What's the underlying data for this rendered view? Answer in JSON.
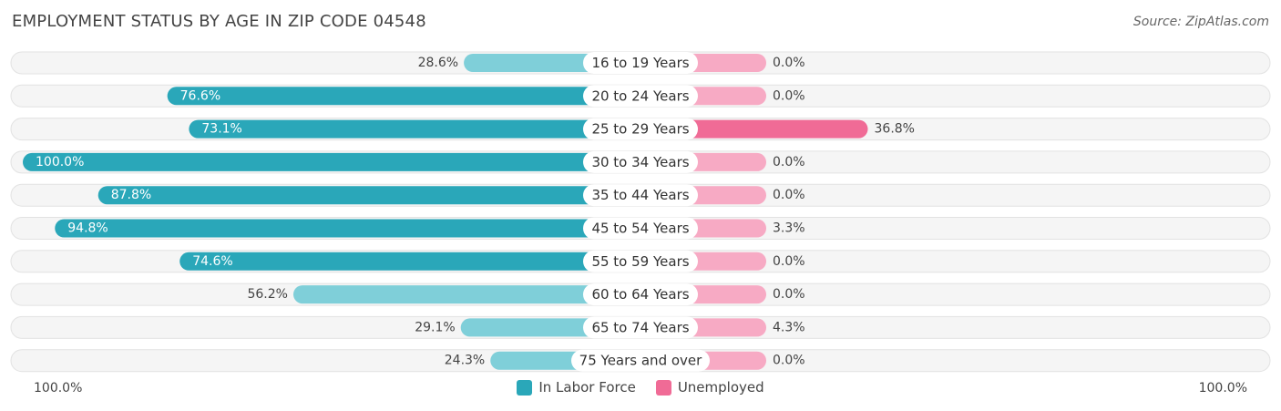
{
  "header": {
    "title": "EMPLOYMENT STATUS BY AGE IN ZIP CODE 04548",
    "source": "Source: ZipAtlas.com"
  },
  "axis": {
    "left_label": "100.0%",
    "right_label": "100.0%"
  },
  "legend": {
    "labor_force": "In Labor Force",
    "unemployed": "Unemployed"
  },
  "colors": {
    "labor_dark": "#2aa7b9",
    "labor_light": "#7fcfd9",
    "unemployed_dark": "#f06b96",
    "unemployed_light": "#f7aac4",
    "track": "#f1f1f1"
  },
  "chart_data": {
    "type": "bar",
    "orientation": "horizontal-diverging",
    "title": "EMPLOYMENT STATUS BY AGE IN ZIP CODE 04548",
    "categories": [
      "16 to 19 Years",
      "20 to 24 Years",
      "25 to 29 Years",
      "30 to 34 Years",
      "35 to 44 Years",
      "45 to 54 Years",
      "55 to 59 Years",
      "60 to 64 Years",
      "65 to 74 Years",
      "75 Years and over"
    ],
    "series": [
      {
        "name": "In Labor Force",
        "values": [
          28.6,
          76.6,
          73.1,
          100.0,
          87.8,
          94.8,
          74.6,
          56.2,
          29.1,
          24.3
        ],
        "labels": [
          "28.6%",
          "76.6%",
          "73.1%",
          "100.0%",
          "87.8%",
          "94.8%",
          "74.6%",
          "56.2%",
          "29.1%",
          "24.3%"
        ]
      },
      {
        "name": "Unemployed",
        "values": [
          0.0,
          0.0,
          36.8,
          0.0,
          0.0,
          3.3,
          0.0,
          0.0,
          4.3,
          0.0
        ],
        "labels": [
          "0.0%",
          "0.0%",
          "36.8%",
          "0.0%",
          "0.0%",
          "3.3%",
          "0.0%",
          "0.0%",
          "4.3%",
          "0.0%"
        ]
      }
    ],
    "xlim": [
      -100,
      100
    ],
    "legend_position": "bottom-center"
  }
}
